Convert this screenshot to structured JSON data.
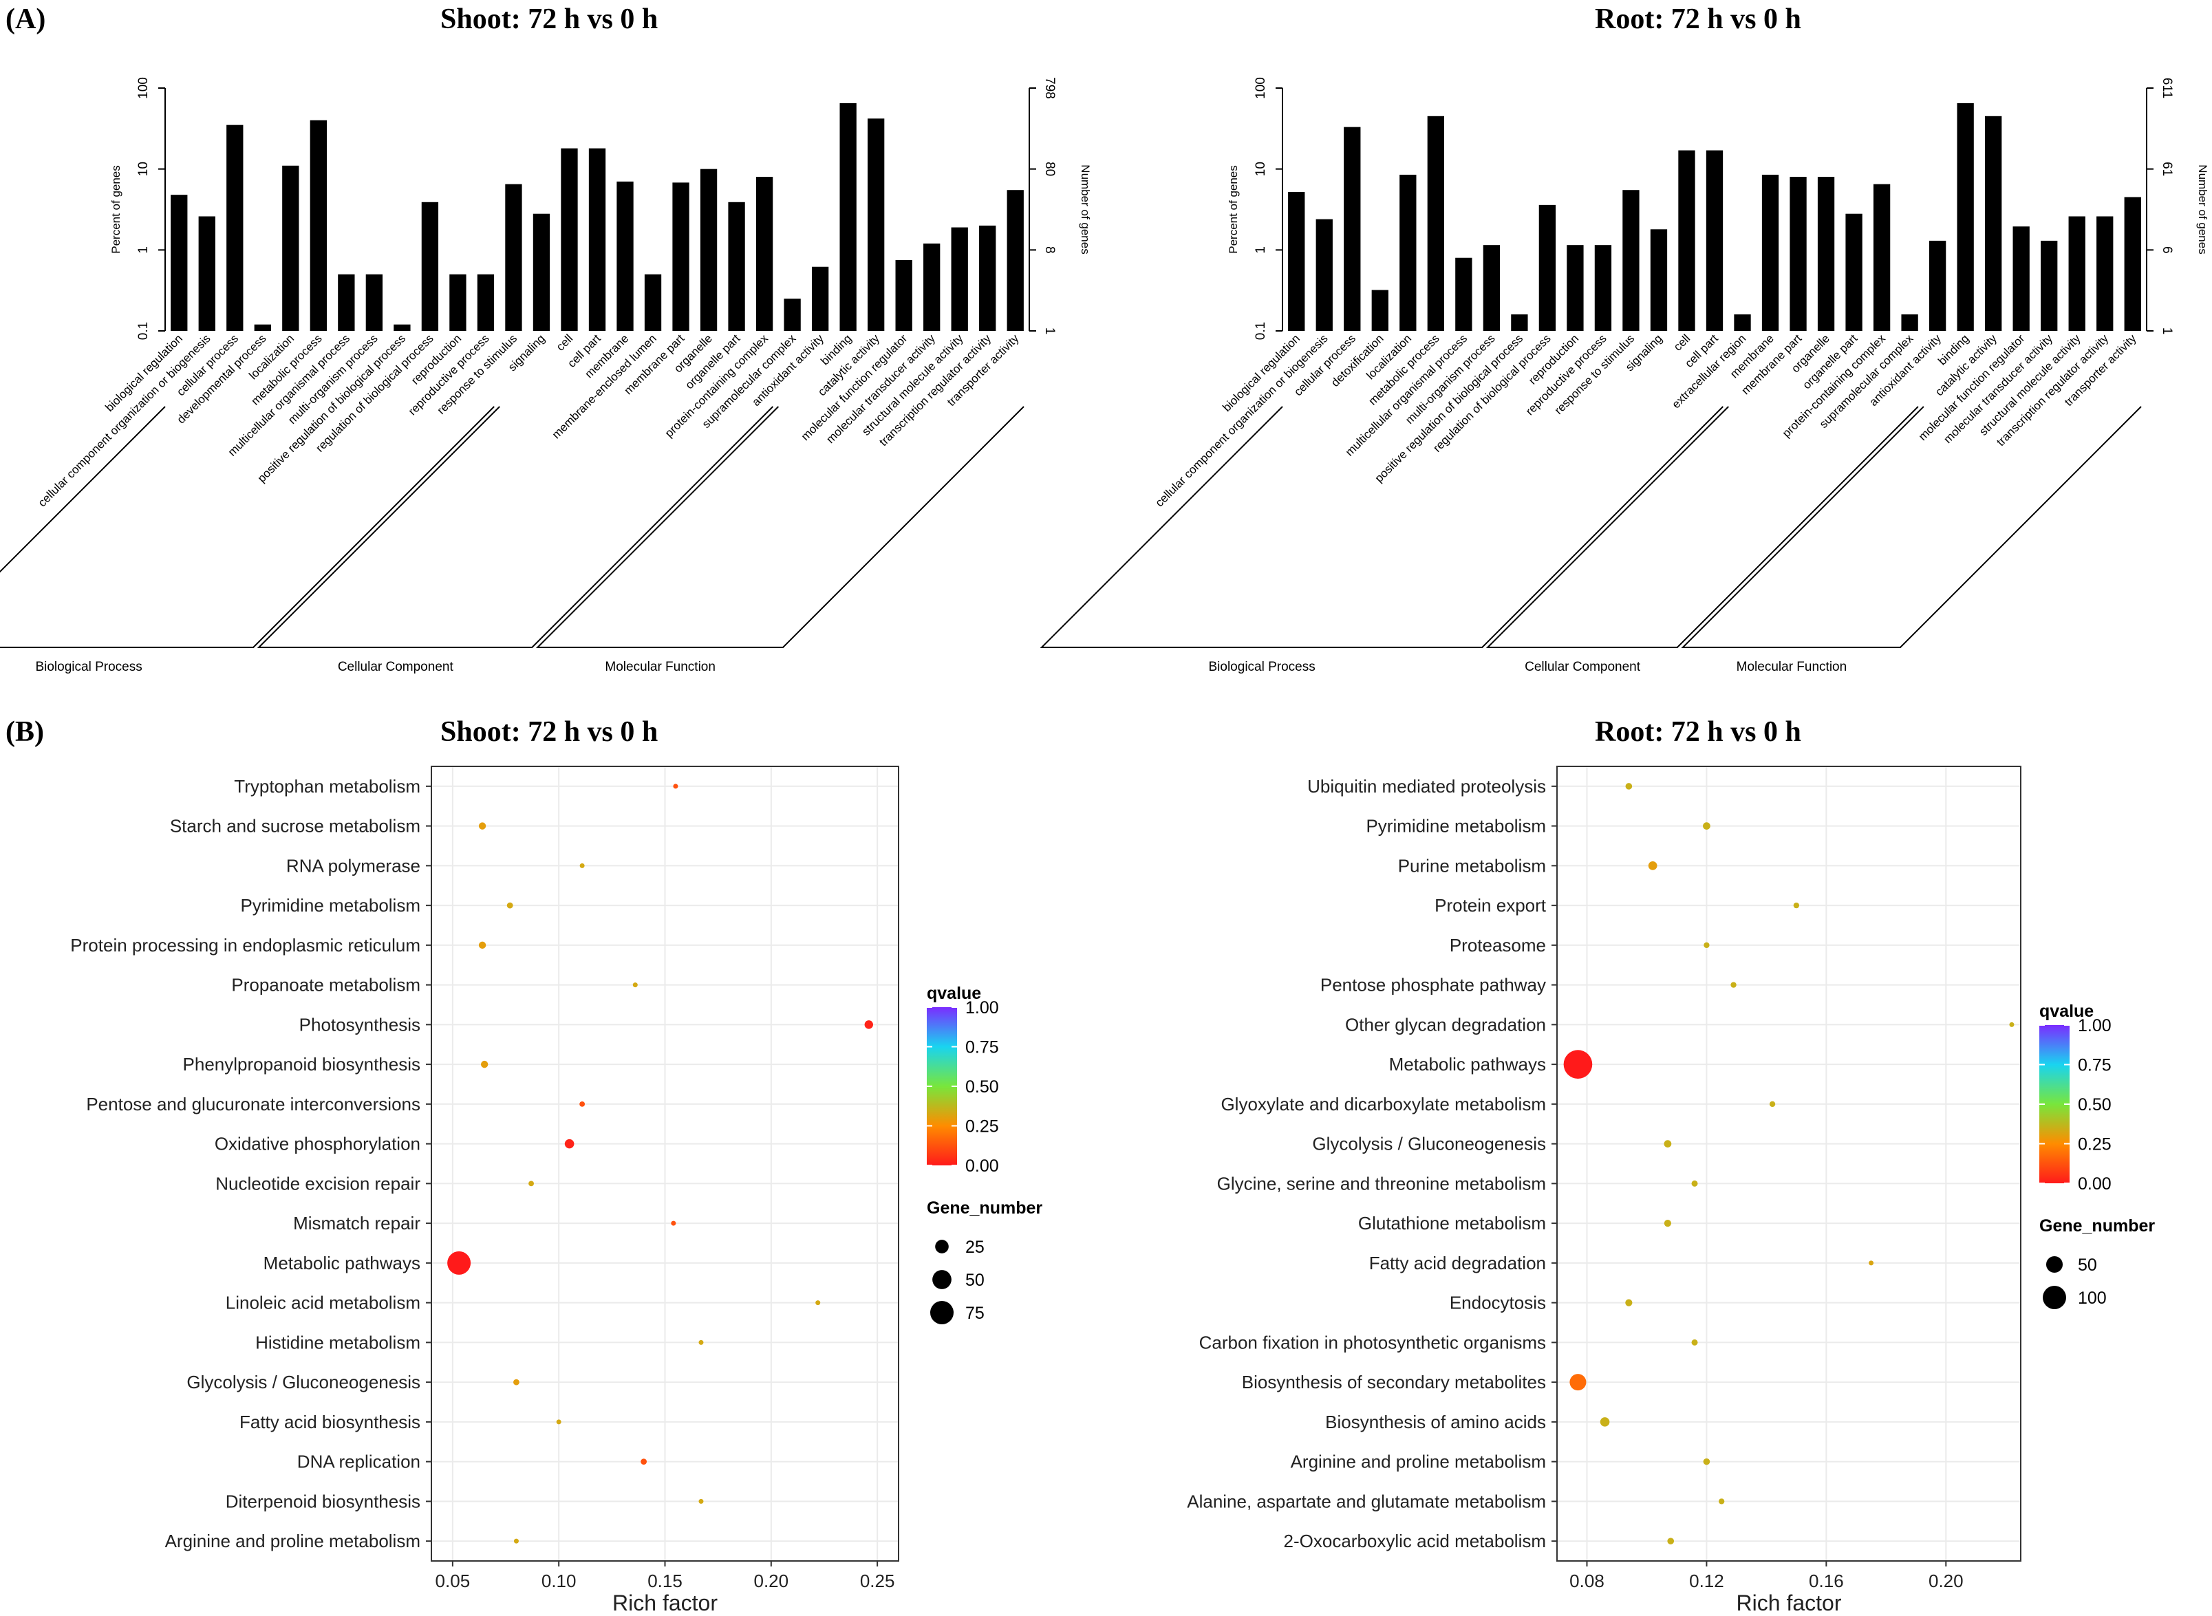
{
  "panels": {
    "a_label": "(A)",
    "b_label": "(B)"
  },
  "colors": {
    "bar": "#000000",
    "q_high": "#7b2cff",
    "q_mid": "#19d4f0",
    "q_low": "#ff1a1a",
    "grid": "#ebebeb"
  },
  "chart_data": [
    {
      "type": "bar",
      "id": "go-shoot",
      "title": "Shoot: 72 h vs 0 h",
      "ylabel": "Percent of genes",
      "y2label": "Number of genes",
      "yscale": "log",
      "ylim": [
        0.1,
        100
      ],
      "yticks": [
        "0.1",
        "1",
        "10",
        "100"
      ],
      "y2ticks": [
        "1",
        "8",
        "80",
        "798"
      ],
      "categories": [
        "biological regulation",
        "cellular component organization or biogenesis",
        "cellular process",
        "developmental process",
        "localization",
        "metabolic process",
        "multicellular organismal process",
        "multi-organism process",
        "positive regulation of biological process",
        "regulation of biological process",
        "reproduction",
        "reproductive process",
        "response to stimulus",
        "signaling",
        "cell",
        "cell part",
        "membrane",
        "membrane-enclosed lumen",
        "membrane part",
        "organelle",
        "organelle part",
        "protein-containing complex",
        "supramolecular complex",
        "antioxidant activity",
        "binding",
        "catalytic activity",
        "molecular function regulator",
        "molecular transducer activity",
        "structural molecule activity",
        "transcription regulator activity",
        "transporter activity"
      ],
      "values": [
        4.8,
        2.6,
        35,
        0.12,
        11,
        40,
        0.5,
        0.5,
        0.12,
        3.9,
        0.5,
        0.5,
        6.5,
        2.8,
        18,
        18,
        7,
        0.5,
        6.8,
        10,
        3.9,
        8,
        0.25,
        0.62,
        65,
        42,
        0.75,
        1.2,
        1.9,
        2,
        5.5
      ],
      "groups": [
        {
          "name": "Biological Process",
          "start": 0,
          "end": 11
        },
        {
          "name": "Cellular Component",
          "start": 12,
          "end": 21
        },
        {
          "name": "Molecular Function",
          "start": 22,
          "end": 30
        }
      ]
    },
    {
      "type": "bar",
      "id": "go-root",
      "title": "Root: 72 h vs 0 h",
      "ylabel": "Percent of genes",
      "y2label": "Number of genes",
      "yscale": "log",
      "ylim": [
        0.1,
        100
      ],
      "yticks": [
        "0.1",
        "1",
        "10",
        "100"
      ],
      "y2ticks": [
        "1",
        "6",
        "61",
        "611"
      ],
      "categories": [
        "biological regulation",
        "cellular component organization or biogenesis",
        "cellular process",
        "detoxification",
        "localization",
        "metabolic process",
        "multicellular organismal process",
        "multi-organism process",
        "positive regulation of biological process",
        "regulation of biological process",
        "reproduction",
        "reproductive process",
        "response to stimulus",
        "signaling",
        "cell",
        "cell part",
        "extracellular region",
        "membrane",
        "membrane part",
        "organelle",
        "organelle part",
        "protein-containing complex",
        "supramolecular complex",
        "antioxidant activity",
        "binding",
        "catalytic activity",
        "molecular function regulator",
        "molecular transducer activity",
        "structural molecule activity",
        "transcription regulator activity",
        "transporter activity"
      ],
      "values": [
        5.2,
        2.4,
        33,
        0.32,
        8.5,
        45,
        0.8,
        1.15,
        0.16,
        3.6,
        1.15,
        1.15,
        5.5,
        1.8,
        17,
        17,
        0.16,
        8.5,
        8,
        8,
        2.8,
        6.5,
        0.16,
        1.3,
        65,
        45,
        1.95,
        1.3,
        2.6,
        2.6,
        4.5
      ],
      "groups": [
        {
          "name": "Biological Process",
          "start": 0,
          "end": 15
        },
        {
          "name": "Cellular Component",
          "start": 16,
          "end": 22
        },
        {
          "name": "Molecular Function",
          "start": 23,
          "end": 30
        }
      ]
    },
    {
      "type": "scatter",
      "id": "kegg-shoot",
      "title": "Shoot: 72 h vs 0 h",
      "xlabel": "Rich factor",
      "xlim": [
        0.04,
        0.26
      ],
      "xticks": [
        0.05,
        0.1,
        0.15,
        0.2,
        0.25
      ],
      "xtick_labels": [
        "0.05",
        "0.10",
        "0.15",
        "0.20",
        "0.25"
      ],
      "legend_color_title": "qvalue",
      "legend_color_ticks": [
        "1.00",
        "0.75",
        "0.50",
        "0.25",
        "0.00"
      ],
      "legend_size_title": "Gene_number",
      "legend_size_values": [
        25,
        50,
        75
      ],
      "legend_size_labels": [
        "25",
        "50",
        "75"
      ],
      "size_ref": 75,
      "pathways": [
        "Tryptophan metabolism",
        "Starch and sucrose metabolism",
        "RNA polymerase",
        "Pyrimidine metabolism",
        "Protein processing in endoplasmic reticulum",
        "Propanoate metabolism",
        "Photosynthesis",
        "Phenylpropanoid biosynthesis",
        "Pentose and glucuronate interconversions",
        "Oxidative phosphorylation",
        "Nucleotide excision repair",
        "Mismatch repair",
        "Metabolic pathways",
        "Linoleic acid metabolism",
        "Histidine metabolism",
        "Glycolysis / Gluconeogenesis",
        "Fatty acid biosynthesis",
        "DNA replication",
        "Diterpenoid biosynthesis",
        "Arginine and proline metabolism"
      ],
      "rich_factor": [
        0.155,
        0.064,
        0.111,
        0.077,
        0.064,
        0.136,
        0.246,
        0.065,
        0.111,
        0.105,
        0.087,
        0.154,
        0.053,
        0.222,
        0.167,
        0.08,
        0.1,
        0.14,
        0.167,
        0.08
      ],
      "qvalue": [
        0.12,
        0.3,
        0.33,
        0.33,
        0.3,
        0.33,
        0.02,
        0.3,
        0.12,
        0.02,
        0.33,
        0.12,
        0.0,
        0.33,
        0.33,
        0.3,
        0.33,
        0.12,
        0.33,
        0.33
      ],
      "gene_number": [
        3,
        7,
        3,
        5,
        7,
        3,
        10,
        7,
        4,
        12,
        4,
        3,
        75,
        2,
        3,
        5,
        3,
        5,
        3,
        3
      ]
    },
    {
      "type": "scatter",
      "id": "kegg-root",
      "title": "Root: 72 h vs 0 h",
      "xlabel": "Rich factor",
      "xlim": [
        0.07,
        0.225
      ],
      "xticks": [
        0.08,
        0.12,
        0.16,
        0.2
      ],
      "xtick_labels": [
        "0.08",
        "0.12",
        "0.16",
        "0.20"
      ],
      "legend_color_title": "qvalue",
      "legend_color_ticks": [
        "1.00",
        "0.75",
        "0.50",
        "0.25",
        "0.00"
      ],
      "legend_size_title": "Gene_number",
      "legend_size_values": [
        50,
        100
      ],
      "legend_size_labels": [
        "50",
        "100"
      ],
      "size_ref": 100,
      "pathways": [
        "Ubiquitin mediated proteolysis",
        "Pyrimidine metabolism",
        "Purine metabolism",
        "Protein export",
        "Proteasome",
        "Pentose phosphate pathway",
        "Other glycan degradation",
        "Metabolic pathways",
        "Glyoxylate and dicarboxylate metabolism",
        "Glycolysis / Gluconeogenesis",
        "Glycine, serine and threonine metabolism",
        "Glutathione metabolism",
        "Fatty acid degradation",
        "Endocytosis",
        "Carbon fixation in photosynthetic organisms",
        "Biosynthesis of secondary metabolites",
        "Biosynthesis of amino acids",
        "Arginine and proline metabolism",
        "Alanine, aspartate and glutamate metabolism",
        "2-Oxocarboxylic acid metabolism"
      ],
      "rich_factor": [
        0.094,
        0.12,
        0.102,
        0.15,
        0.12,
        0.129,
        0.222,
        0.077,
        0.142,
        0.107,
        0.116,
        0.107,
        0.175,
        0.094,
        0.116,
        0.077,
        0.086,
        0.12,
        0.125,
        0.108
      ],
      "qvalue": [
        0.35,
        0.35,
        0.3,
        0.35,
        0.35,
        0.35,
        0.35,
        0.0,
        0.35,
        0.35,
        0.35,
        0.35,
        0.32,
        0.35,
        0.35,
        0.18,
        0.35,
        0.35,
        0.35,
        0.35
      ],
      "gene_number": [
        8,
        10,
        14,
        6,
        6,
        6,
        3,
        150,
        6,
        10,
        7,
        9,
        4,
        9,
        7,
        50,
        16,
        8,
        6,
        8
      ]
    }
  ]
}
